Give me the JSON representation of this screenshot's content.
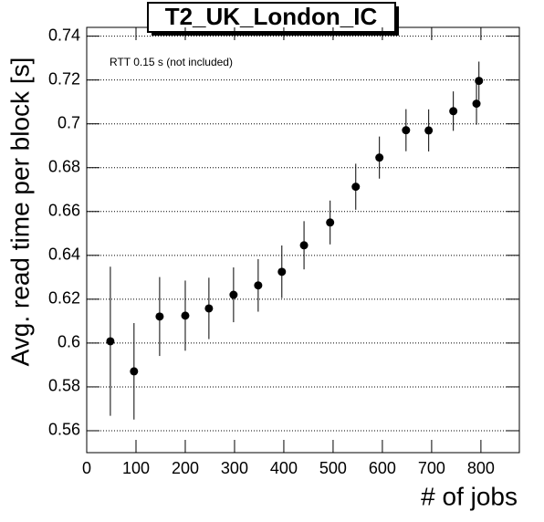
{
  "chart_data": {
    "type": "errorbar",
    "title": "T2_UK_London_IC",
    "annotation": "RTT 0.15 s (not included)",
    "x_label": "# of jobs",
    "y_label": "Avg. read time per block [s]",
    "x": [
      48,
      96,
      148,
      200,
      248,
      298,
      348,
      396,
      441,
      494,
      546,
      594,
      648,
      694,
      744,
      791,
      796
    ],
    "series": [
      {
        "color": "#000000",
        "values": [
          0.6008,
          0.5871,
          0.6121,
          0.6125,
          0.6158,
          0.622,
          0.6263,
          0.6325,
          0.6446,
          0.655,
          0.6713,
          0.6846,
          0.6971,
          0.697,
          0.7058,
          0.7092,
          0.7196
        ],
        "errors": [
          0.034,
          0.022,
          0.018,
          0.016,
          0.014,
          0.0125,
          0.012,
          0.012,
          0.011,
          0.01,
          0.0105,
          0.0096,
          0.0096,
          0.0096,
          0.009,
          0.0096,
          0.0088
        ]
      }
    ],
    "xlim": [
      0,
      878
    ],
    "xticks": [
      0,
      100,
      200,
      300,
      400,
      500,
      600,
      700,
      800
    ],
    "ylim": [
      0.55,
      0.744
    ],
    "yticks": [
      0.56,
      0.58,
      0.6,
      0.62,
      0.64,
      0.66,
      0.68,
      0.7,
      0.72,
      0.74
    ],
    "ygrid": true
  }
}
